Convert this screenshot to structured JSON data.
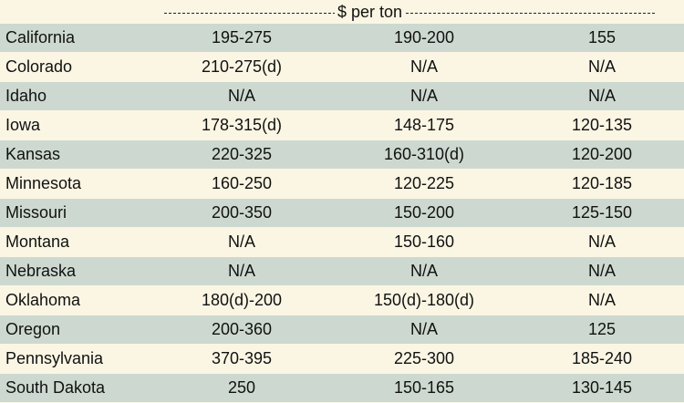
{
  "header": {
    "unit_label": "$ per ton"
  },
  "rows": [
    {
      "state": "California",
      "a": "195-275",
      "b": "190-200",
      "c": "155"
    },
    {
      "state": "Colorado",
      "a": "210-275(d)",
      "b": "N/A",
      "c": "N/A"
    },
    {
      "state": "Idaho",
      "a": "N/A",
      "b": "N/A",
      "c": "N/A"
    },
    {
      "state": "Iowa",
      "a": "178-315(d)",
      "b": "148-175",
      "c": "120-135"
    },
    {
      "state": "Kansas",
      "a": "220-325",
      "b": "160-310(d)",
      "c": "120-200"
    },
    {
      "state": "Minnesota",
      "a": "160-250",
      "b": "120-225",
      "c": "120-185"
    },
    {
      "state": "Missouri",
      "a": "200-350",
      "b": "150-200",
      "c": "125-150"
    },
    {
      "state": "Montana",
      "a": "N/A",
      "b": "150-160",
      "c": "N/A"
    },
    {
      "state": "Nebraska",
      "a": "N/A",
      "b": "N/A",
      "c": "N/A"
    },
    {
      "state": "Oklahoma",
      "a": "180(d)-200",
      "b": "150(d)-180(d)",
      "c": "N/A"
    },
    {
      "state": "Oregon",
      "a": "200-360",
      "b": "N/A",
      "c": "125"
    },
    {
      "state": "Pennsylvania",
      "a": "370-395",
      "b": "225-300",
      "c": "185-240"
    },
    {
      "state": "South Dakota",
      "a": "250",
      "b": "150-165",
      "c": "130-145"
    }
  ],
  "colors": {
    "shade_row": "#cdd9d0",
    "plain_row": "#fbf6e4"
  }
}
